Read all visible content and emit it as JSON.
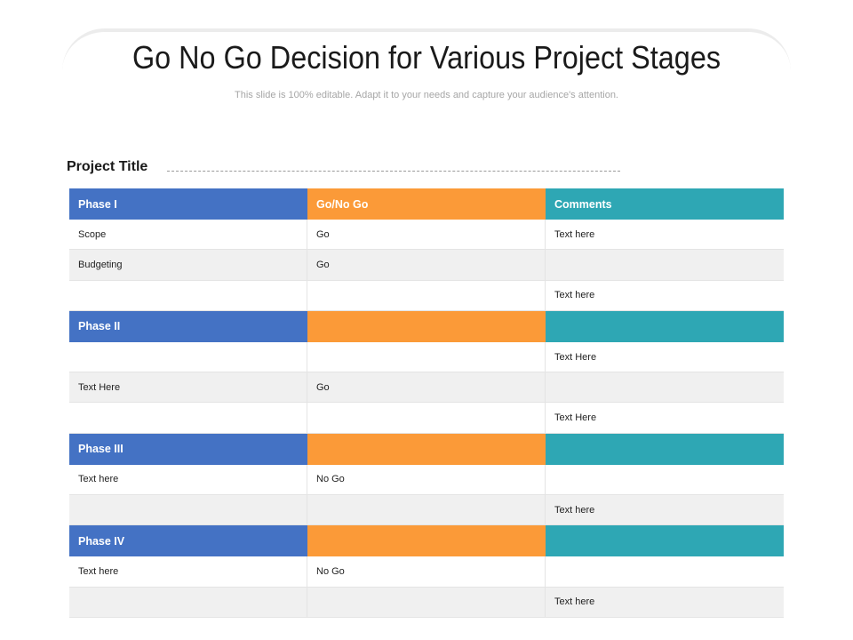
{
  "slide": {
    "title": "Go No Go Decision for Various Project Stages",
    "subtitle": "This slide is 100% editable. Adapt it to your needs and capture your audience's attention.",
    "project_title": "Project Title"
  },
  "colors": {
    "phase_column": "#4472c4",
    "go_column": "#fb9a38",
    "comments_column": "#2ea7b4"
  },
  "table": {
    "rows": [
      {
        "type": "head",
        "cells": [
          "Phase I",
          "Go/No Go",
          "Comments"
        ]
      },
      {
        "type": "body",
        "cells": [
          "Scope",
          "Go",
          "Text here"
        ]
      },
      {
        "type": "body",
        "cells": [
          "Budgeting",
          "Go",
          ""
        ]
      },
      {
        "type": "body",
        "cells": [
          "",
          "",
          "Text here"
        ]
      },
      {
        "type": "head",
        "cells": [
          "Phase II",
          "",
          ""
        ]
      },
      {
        "type": "body",
        "cells": [
          "",
          "",
          "Text Here"
        ]
      },
      {
        "type": "body",
        "cells": [
          "Text Here",
          "Go",
          ""
        ]
      },
      {
        "type": "body",
        "cells": [
          "",
          "",
          "Text Here"
        ]
      },
      {
        "type": "head",
        "cells": [
          "Phase III",
          "",
          ""
        ]
      },
      {
        "type": "body",
        "cells": [
          "Text here",
          "No Go",
          ""
        ]
      },
      {
        "type": "body",
        "cells": [
          "",
          "",
          "Text here"
        ]
      },
      {
        "type": "head",
        "cells": [
          "Phase IV",
          "",
          ""
        ]
      },
      {
        "type": "body",
        "cells": [
          "Text here",
          "No Go",
          ""
        ]
      },
      {
        "type": "body",
        "cells": [
          "",
          "",
          "Text here"
        ]
      }
    ]
  }
}
